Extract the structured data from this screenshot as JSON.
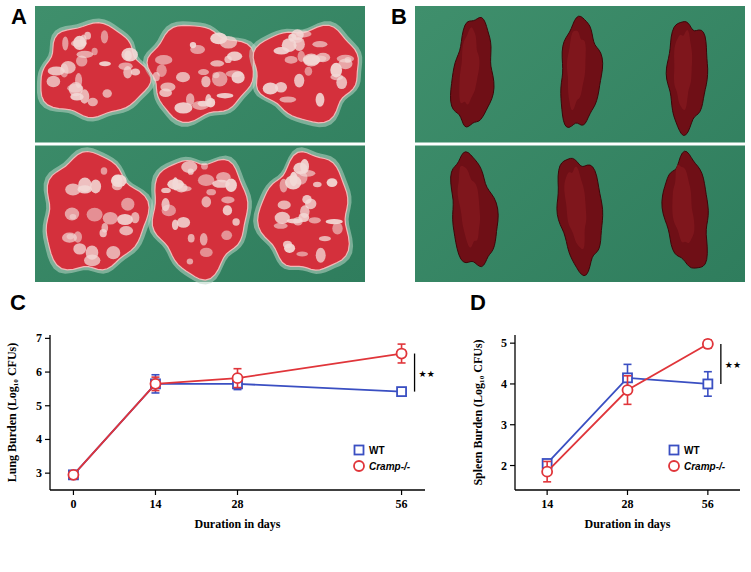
{
  "photos": [
    {
      "label": "A"
    },
    {
      "label": "B"
    }
  ],
  "chart_data": [
    {
      "type": "line",
      "annotations": [
        {
          "text": "C"
        },
        {
          "text": "★★",
          "x": 56
        }
      ],
      "xlabel": "Duration in days",
      "ylabel": "Lung Burden (Log₁₀ CFUs)",
      "x": [
        0,
        14,
        28,
        56
      ],
      "xlim": [
        -4,
        60
      ],
      "xticks": [
        0,
        14,
        28,
        56
      ],
      "ylim": [
        2.5,
        7.1
      ],
      "yticks": [
        3,
        4,
        5,
        6,
        7
      ],
      "legend": "lower right",
      "series": [
        {
          "name": "WT",
          "color": "#3a4fc2",
          "marker": "square",
          "values": [
            2.95,
            5.65,
            5.65,
            5.42
          ],
          "errors": [
            0.05,
            0.27,
            0.17,
            0.08
          ]
        },
        {
          "name": "Cramp-/-",
          "color": "#e0353a",
          "marker": "circle",
          "values": [
            2.95,
            5.65,
            5.82,
            6.55
          ],
          "errors": [
            0.05,
            0.2,
            0.28,
            0.28
          ]
        }
      ]
    },
    {
      "type": "line",
      "annotations": [
        {
          "text": "D"
        },
        {
          "text": "★★",
          "x": "56"
        }
      ],
      "xlabel": "Duration in days",
      "ylabel": "Spleen Burden (Log₁₀ CFUs)",
      "categories": [
        "14",
        "28",
        "56"
      ],
      "ylim": [
        1.4,
        5.2
      ],
      "yticks": [
        2,
        3,
        4,
        5
      ],
      "legend": "lower right",
      "series": [
        {
          "name": "WT",
          "color": "#3a4fc2",
          "marker": "square",
          "values": [
            2.05,
            4.15,
            4.0
          ],
          "errors": [
            0.08,
            0.33,
            0.3
          ]
        },
        {
          "name": "Cramp-/-",
          "color": "#e0353a",
          "marker": "circle",
          "values": [
            1.85,
            3.85,
            4.98
          ],
          "errors": [
            0.25,
            0.35,
            0.1
          ]
        }
      ]
    }
  ]
}
